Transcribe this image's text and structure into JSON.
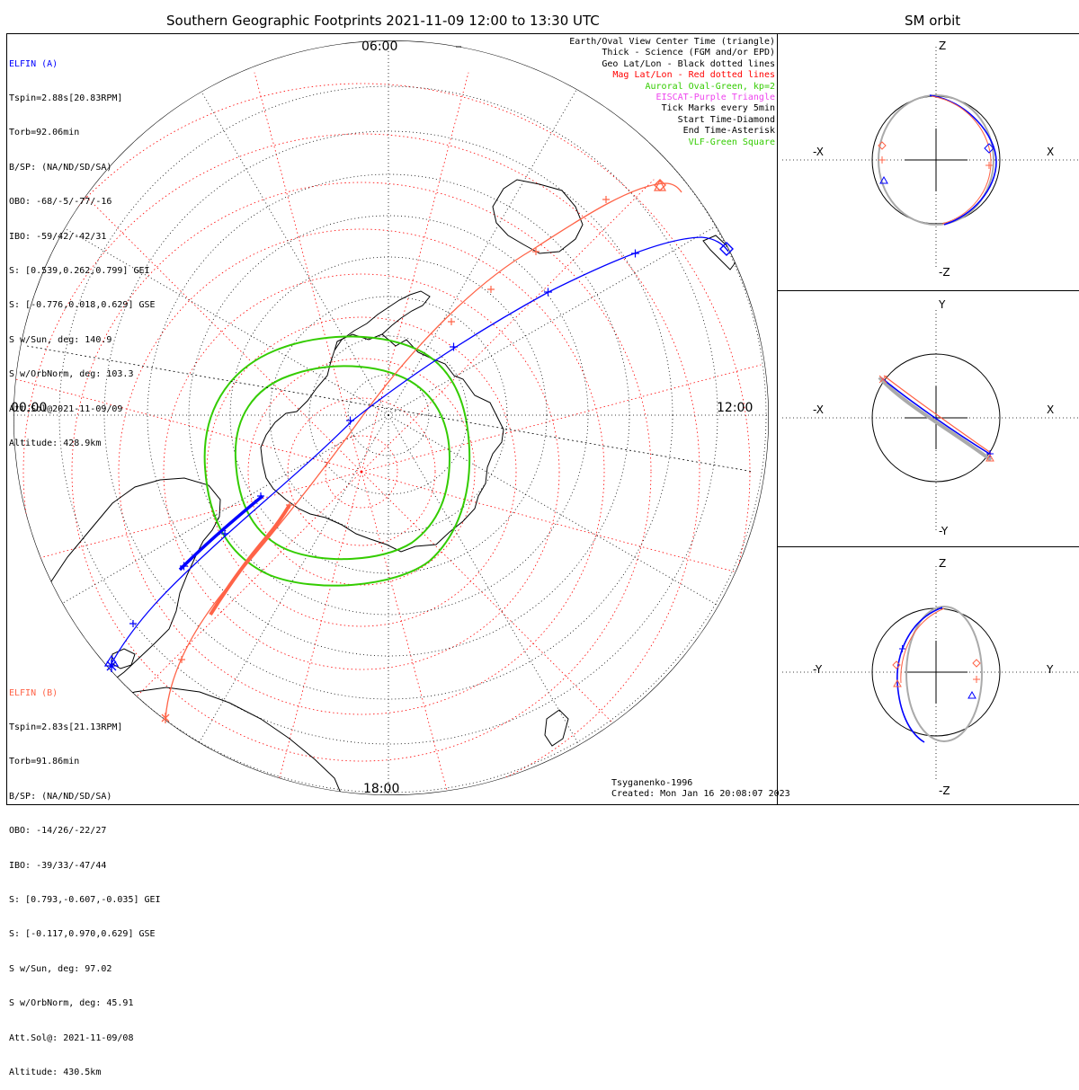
{
  "title": "Southern Geographic Footprints 2021-11-09 12:00 to 13:30 UTC",
  "sm_title": "SM orbit",
  "map": {
    "time_labels": {
      "top": "06:00",
      "left": "00:00",
      "right": "12:00",
      "bottom": "18:00"
    },
    "credit": "Tsyganenko-1996",
    "created": "Created: Mon Jan 16 20:08:07 2023"
  },
  "elfin_a": {
    "name": "ELFIN (A)",
    "color": "#0000ff",
    "lines": [
      "Tspin=2.88s[20.83RPM]",
      "Torb=92.06min",
      "B/SP: (NA/ND/SD/SA)",
      "OBO: -68/-5/-77/-16",
      "IBO: -59/42/-42/31",
      "S: [0.539,0.262,0.799] GEI",
      "S: [-0.776,0.018,0.629] GSE",
      "S w/Sun, deg: 140.9",
      "S w/OrbNorm, deg: 103.3",
      "Att.Sol@2021-11-09/09",
      "Altitude: 428.9km"
    ]
  },
  "elfin_b": {
    "name": "ELFIN (B)",
    "color": "#ff6347",
    "lines": [
      "Tspin=2.83s[21.13RPM]",
      "Torb=91.86min",
      "B/SP: (NA/ND/SD/SA)",
      "OBO: -14/26/-22/27",
      "IBO: -39/33/-47/44",
      "S: [0.793,-0.607,-0.035] GEI",
      "S: [-0.117,0.970,0.629] GSE",
      "S w/Sun, deg: 97.02",
      "S w/OrbNorm, deg: 45.91",
      "Att.Sol@: 2021-11-09/08",
      "Altitude: 430.5km"
    ]
  },
  "legend": [
    {
      "text": "Earth/Oval View Center Time (triangle)",
      "color": "#000000"
    },
    {
      "text": "Thick - Science (FGM and/or EPD)",
      "color": "#000000"
    },
    {
      "text": "Geo Lat/Lon - Black dotted lines",
      "color": "#000000"
    },
    {
      "text": "Mag Lat/Lon - Red dotted lines",
      "color": "#ff0000"
    },
    {
      "text": "Auroral Oval-Green, kp=2",
      "color": "#33cc00"
    },
    {
      "text": "EISCAT-Purple Triangle",
      "color": "#ee44ee"
    },
    {
      "text": "Tick Marks every 5min",
      "color": "#000000"
    },
    {
      "text": "Start Time-Diamond",
      "color": "#000000"
    },
    {
      "text": "End Time-Asterisk",
      "color": "#000000"
    },
    {
      "text": "VLF-Green Square",
      "color": "#33cc00"
    }
  ],
  "sm_panels": [
    {
      "top": "Z",
      "bottom": "-Z",
      "left": "-X",
      "right": "X"
    },
    {
      "top": "Y",
      "bottom": "-Y",
      "left": "-X",
      "right": "X"
    },
    {
      "top": "Z",
      "bottom": "-Z",
      "left": "-Y",
      "right": "Y"
    }
  ]
}
